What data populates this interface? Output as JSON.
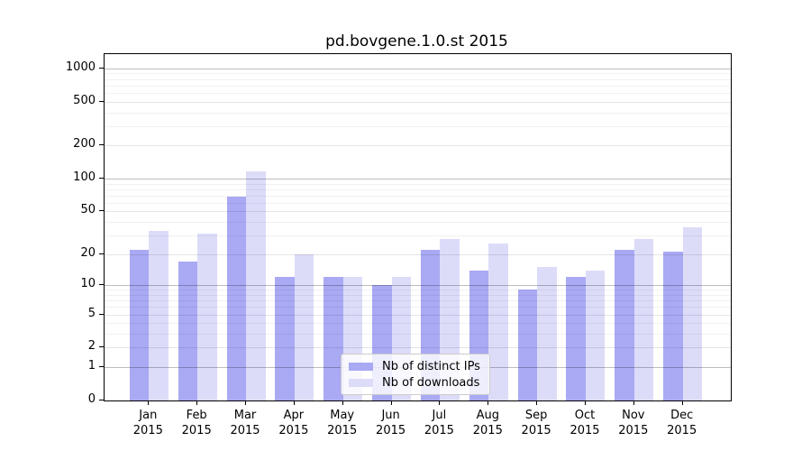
{
  "chart_data": {
    "type": "bar",
    "title": "pd.bovgene.1.0.st 2015",
    "categories": [
      "Jan",
      "Feb",
      "Mar",
      "Apr",
      "May",
      "Jun",
      "Jul",
      "Aug",
      "Sep",
      "Oct",
      "Nov",
      "Dec"
    ],
    "year": "2015",
    "series": [
      {
        "name": "Nb of distinct IPs",
        "color": "#a9a9f4",
        "values": [
          22,
          17,
          68,
          12,
          12,
          10,
          22,
          14,
          9,
          12,
          22,
          21
        ]
      },
      {
        "name": "Nb of downloads",
        "color": "#dcdcf9",
        "values": [
          33,
          31,
          117,
          20,
          12,
          12,
          28,
          25,
          15,
          14,
          28,
          36
        ]
      }
    ],
    "xlabel": "",
    "ylabel": "",
    "yscale": "log1p",
    "ylim": [
      0,
      1344
    ],
    "yticks_labeled": [
      0,
      1,
      2,
      5,
      10,
      20,
      50,
      100,
      200,
      500,
      1000
    ],
    "yticks_mid": [
      2,
      5,
      20,
      50,
      200,
      500
    ],
    "yticks_minor": [
      3,
      4,
      6,
      7,
      8,
      9,
      30,
      40,
      60,
      70,
      80,
      90,
      300,
      400,
      600,
      700,
      800,
      900
    ],
    "grid": true,
    "legend_position": "lower center"
  }
}
